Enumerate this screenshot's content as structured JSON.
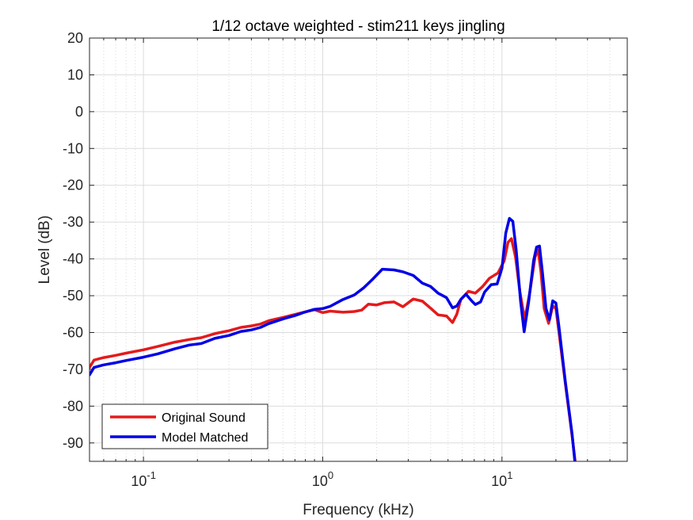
{
  "chart_data": {
    "type": "line",
    "title": "1/12 octave weighted - stim211 keys jingling",
    "xlabel": "Frequency (kHz)",
    "ylabel": "Level (dB)",
    "xscale": "log",
    "xlim": [
      0.05,
      50
    ],
    "ylim": [
      -95,
      20
    ],
    "grid": true,
    "legend_position": "bottom-left",
    "x_ticks": [
      {
        "value": 0.1,
        "base": "10",
        "exp": "-1"
      },
      {
        "value": 1,
        "base": "10",
        "exp": "0"
      },
      {
        "value": 10,
        "base": "10",
        "exp": "1"
      }
    ],
    "y_ticks": [
      20,
      10,
      0,
      -10,
      -20,
      -30,
      -40,
      -50,
      -60,
      -70,
      -80,
      -90
    ],
    "series": [
      {
        "name": "Original Sound",
        "color": "#e41a1c",
        "points": [
          [
            0.05,
            -69.5
          ],
          [
            0.053,
            -67.5
          ],
          [
            0.06,
            -66.8
          ],
          [
            0.07,
            -66.2
          ],
          [
            0.08,
            -65.6
          ],
          [
            0.1,
            -64.7
          ],
          [
            0.12,
            -63.8
          ],
          [
            0.15,
            -62.6
          ],
          [
            0.18,
            -61.9
          ],
          [
            0.21,
            -61.4
          ],
          [
            0.25,
            -60.3
          ],
          [
            0.3,
            -59.5
          ],
          [
            0.35,
            -58.6
          ],
          [
            0.4,
            -58.2
          ],
          [
            0.45,
            -57.7
          ],
          [
            0.5,
            -56.8
          ],
          [
            0.6,
            -55.9
          ],
          [
            0.7,
            -55.1
          ],
          [
            0.8,
            -54.4
          ],
          [
            0.9,
            -53.8
          ],
          [
            1.0,
            -54.6
          ],
          [
            1.1,
            -54.2
          ],
          [
            1.3,
            -54.5
          ],
          [
            1.5,
            -54.3
          ],
          [
            1.65,
            -53.9
          ],
          [
            1.8,
            -52.3
          ],
          [
            2.0,
            -52.5
          ],
          [
            2.2,
            -51.9
          ],
          [
            2.5,
            -51.7
          ],
          [
            2.8,
            -53.0
          ],
          [
            3.2,
            -50.9
          ],
          [
            3.6,
            -51.5
          ],
          [
            4.0,
            -53.4
          ],
          [
            4.4,
            -55.2
          ],
          [
            4.9,
            -55.5
          ],
          [
            5.3,
            -57.3
          ],
          [
            5.6,
            -55.0
          ],
          [
            5.9,
            -51.0
          ],
          [
            6.5,
            -48.8
          ],
          [
            7.1,
            -49.3
          ],
          [
            7.8,
            -47.5
          ],
          [
            8.5,
            -45.3
          ],
          [
            9.5,
            -43.8
          ],
          [
            10.3,
            -40.5
          ],
          [
            10.8,
            -35.5
          ],
          [
            11.3,
            -34.5
          ],
          [
            11.9,
            -39.5
          ],
          [
            12.6,
            -49.0
          ],
          [
            13.4,
            -56.5
          ],
          [
            14.3,
            -49.0
          ],
          [
            15.3,
            -39.5
          ],
          [
            15.9,
            -37.5
          ],
          [
            16.5,
            -43.5
          ],
          [
            17.2,
            -53.5
          ],
          [
            18.2,
            -57.5
          ],
          [
            19.2,
            -52.8
          ],
          [
            20.0,
            -53.5
          ],
          [
            20.8,
            -60.0
          ],
          [
            22.6,
            -74.0
          ],
          [
            24.6,
            -88.0
          ],
          [
            25.6,
            -95.0
          ]
        ]
      },
      {
        "name": "Model Matched",
        "color": "#0000e6",
        "points": [
          [
            0.05,
            -71.5
          ],
          [
            0.053,
            -69.5
          ],
          [
            0.06,
            -68.8
          ],
          [
            0.07,
            -68.2
          ],
          [
            0.08,
            -67.6
          ],
          [
            0.1,
            -66.7
          ],
          [
            0.12,
            -65.8
          ],
          [
            0.15,
            -64.4
          ],
          [
            0.18,
            -63.4
          ],
          [
            0.21,
            -63.0
          ],
          [
            0.25,
            -61.6
          ],
          [
            0.3,
            -60.8
          ],
          [
            0.35,
            -59.7
          ],
          [
            0.4,
            -59.3
          ],
          [
            0.45,
            -58.6
          ],
          [
            0.5,
            -57.6
          ],
          [
            0.6,
            -56.3
          ],
          [
            0.7,
            -55.4
          ],
          [
            0.8,
            -54.4
          ],
          [
            0.9,
            -53.7
          ],
          [
            1.0,
            -53.5
          ],
          [
            1.1,
            -52.9
          ],
          [
            1.3,
            -51.0
          ],
          [
            1.5,
            -49.8
          ],
          [
            1.7,
            -47.8
          ],
          [
            1.9,
            -45.5
          ],
          [
            2.15,
            -42.8
          ],
          [
            2.5,
            -43.0
          ],
          [
            2.8,
            -43.5
          ],
          [
            3.2,
            -44.5
          ],
          [
            3.6,
            -46.6
          ],
          [
            4.0,
            -47.5
          ],
          [
            4.4,
            -49.3
          ],
          [
            4.9,
            -50.5
          ],
          [
            5.3,
            -53.3
          ],
          [
            5.6,
            -52.8
          ],
          [
            5.9,
            -51.0
          ],
          [
            6.3,
            -49.6
          ],
          [
            6.8,
            -51.5
          ],
          [
            7.1,
            -52.4
          ],
          [
            7.6,
            -51.7
          ],
          [
            8.0,
            -49.0
          ],
          [
            8.7,
            -47.0
          ],
          [
            9.4,
            -46.8
          ],
          [
            10.0,
            -42.5
          ],
          [
            10.5,
            -33.0
          ],
          [
            11.0,
            -29.0
          ],
          [
            11.5,
            -29.8
          ],
          [
            12.0,
            -37.5
          ],
          [
            12.7,
            -51.5
          ],
          [
            13.3,
            -59.8
          ],
          [
            14.1,
            -51.5
          ],
          [
            15.0,
            -40.5
          ],
          [
            15.6,
            -36.8
          ],
          [
            16.2,
            -36.5
          ],
          [
            16.8,
            -43.5
          ],
          [
            17.6,
            -53.5
          ],
          [
            18.4,
            -56.5
          ],
          [
            19.2,
            -51.4
          ],
          [
            20.0,
            -52.0
          ],
          [
            20.8,
            -58.5
          ],
          [
            22.6,
            -73.5
          ],
          [
            24.6,
            -87.5
          ],
          [
            25.5,
            -95.0
          ]
        ]
      }
    ]
  }
}
